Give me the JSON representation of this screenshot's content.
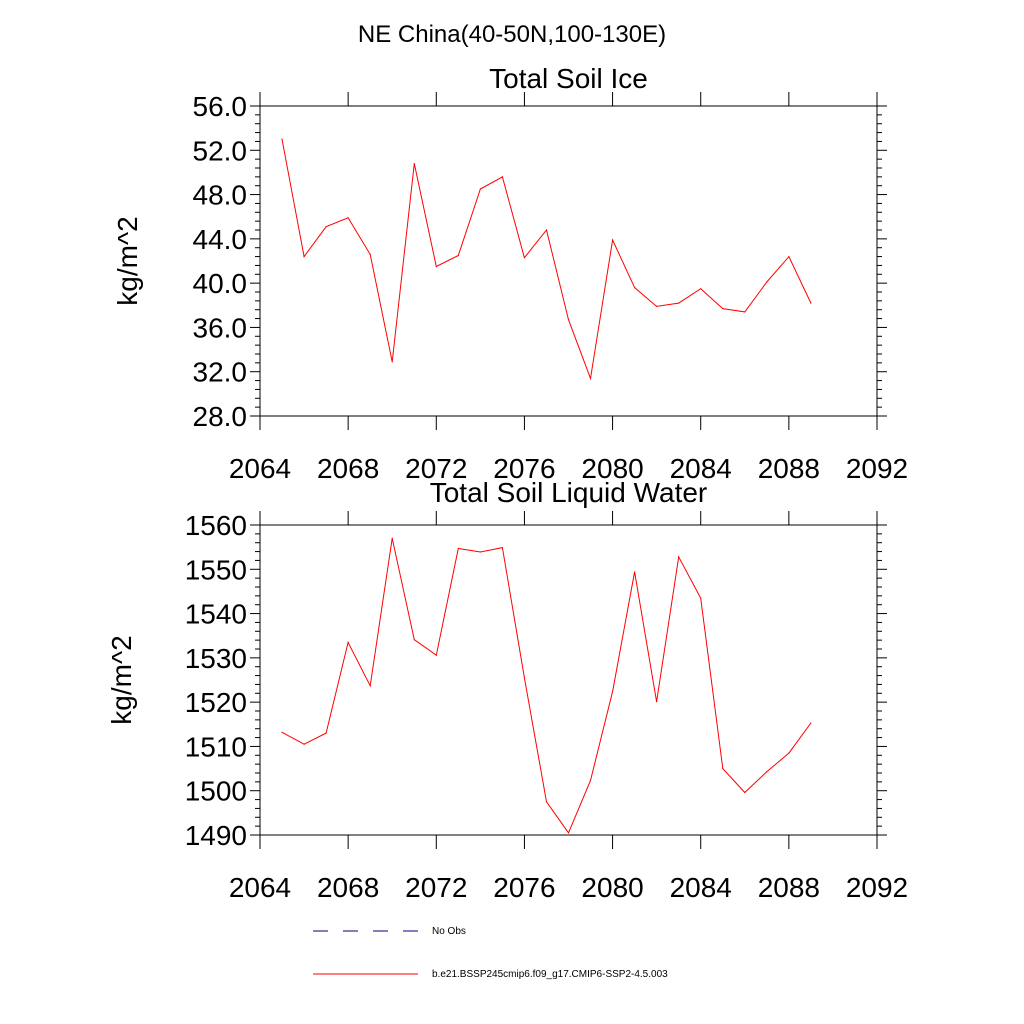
{
  "figure": {
    "suptitle": "NE China(40-50N,100-130E)"
  },
  "legend": {
    "entries": [
      {
        "label": "No Obs",
        "style": "dashed",
        "color": "#000080"
      },
      {
        "label": "b.e21.BSSP245cmip6.f09_g17.CMIP6-SSP2-4.5.003",
        "style": "solid",
        "color": "#ff0000"
      }
    ]
  },
  "chart_data": [
    {
      "type": "line",
      "title": "Total Soil Ice",
      "xlabel": "",
      "ylabel": "kg/m^2",
      "xlim": [
        2064,
        2092
      ],
      "ylim": [
        28,
        56
      ],
      "xticks": [
        2064,
        2068,
        2072,
        2076,
        2080,
        2084,
        2088,
        2092
      ],
      "xtick_labels": [
        "2064",
        "2068",
        "2072",
        "2076",
        "2080",
        "2084",
        "2088",
        "2092"
      ],
      "yticks": [
        28,
        32,
        36,
        40,
        44,
        48,
        52,
        56
      ],
      "ytick_labels": [
        "28.0",
        "32.0",
        "36.0",
        "40.0",
        "44.0",
        "48.0",
        "52.0",
        "56.0"
      ],
      "grid": false,
      "series": [
        {
          "color": "#ff0000",
          "x": [
            2065,
            2066,
            2067,
            2068,
            2069,
            2070,
            2071,
            2072,
            2073,
            2074,
            2075,
            2076,
            2077,
            2078,
            2079,
            2080,
            2081,
            2082,
            2083,
            2084,
            2085,
            2086,
            2087,
            2088,
            2089
          ],
          "values": [
            53.0,
            42.4,
            45.1,
            45.9,
            42.6,
            32.9,
            50.8,
            41.5,
            42.5,
            48.5,
            49.6,
            42.3,
            44.8,
            36.7,
            31.4,
            43.9,
            39.6,
            37.9,
            38.2,
            39.5,
            37.7,
            37.4,
            40.1,
            42.4,
            38.2
          ]
        }
      ]
    },
    {
      "type": "line",
      "title": "Total Soil Liquid Water",
      "xlabel": "",
      "ylabel": "kg/m^2",
      "xlim": [
        2064,
        2092
      ],
      "ylim": [
        1490,
        1560
      ],
      "xticks": [
        2064,
        2068,
        2072,
        2076,
        2080,
        2084,
        2088,
        2092
      ],
      "xtick_labels": [
        "2064",
        "2068",
        "2072",
        "2076",
        "2080",
        "2084",
        "2088",
        "2092"
      ],
      "yticks": [
        1490,
        1500,
        1510,
        1520,
        1530,
        1540,
        1550,
        1560
      ],
      "ytick_labels": [
        "1490",
        "1500",
        "1510",
        "1520",
        "1530",
        "1540",
        "1550",
        "1560"
      ],
      "grid": false,
      "series": [
        {
          "color": "#ff0000",
          "x": [
            2065,
            2066,
            2067,
            2068,
            2069,
            2070,
            2071,
            2072,
            2073,
            2074,
            2075,
            2076,
            2077,
            2078,
            2079,
            2080,
            2081,
            2082,
            2083,
            2084,
            2085,
            2086,
            2087,
            2088,
            2089
          ],
          "values": [
            1513.2,
            1510.5,
            1513.0,
            1533.5,
            1523.7,
            1557.0,
            1534.1,
            1530.6,
            1554.7,
            1553.9,
            1554.9,
            1525.5,
            1497.5,
            1490.5,
            1502.3,
            1522.4,
            1549.4,
            1520.1,
            1552.8,
            1543.5,
            1505.0,
            1499.6,
            1504.3,
            1508.5,
            1515.3
          ]
        }
      ]
    }
  ]
}
